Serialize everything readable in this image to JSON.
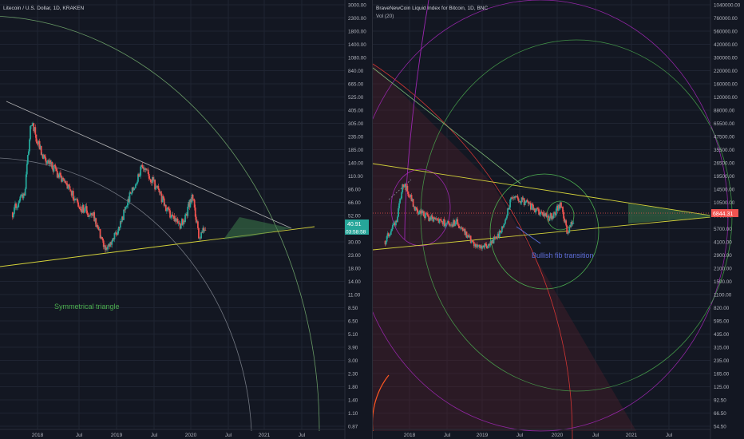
{
  "colors": {
    "bg": "#131722",
    "grid": "#1f2432",
    "axis_text": "#b2b5be",
    "candle_up": "#26a69a",
    "candle_down": "#ef5350",
    "trend_yellow": "#d4d23a",
    "trend_green": "#7dba76",
    "circle_green": "#4caf50",
    "circle_purple": "#9c27b0",
    "circle_red": "#e53935",
    "fill_green": "#3d7a4a",
    "fill_red": "#5a1f2a",
    "badge_green": "#26a69a",
    "badge_red": "#ef5350",
    "annotation_blue": "#5b6bd6"
  },
  "left_chart": {
    "title": "Litecoin / U.S. Dollar, 1D, KRAKEN",
    "price_badge": "40.91",
    "timer_badge": "03:58:58",
    "annotation": "Symmetrical triangle",
    "y_ticks": [
      "3000.00",
      "2300.00",
      "1800.00",
      "1400.00",
      "1080.00",
      "840.00",
      "665.00",
      "525.00",
      "405.00",
      "305.00",
      "235.00",
      "185.00",
      "140.00",
      "110.00",
      "86.00",
      "66.00",
      "52.00",
      "40.00",
      "30.00",
      "23.00",
      "18.00",
      "14.00",
      "11.00",
      "8.50",
      "6.50",
      "5.10",
      "3.90",
      "3.00",
      "2.30",
      "1.80",
      "1.40",
      "1.10",
      "0.87"
    ],
    "x_ticks": [
      "2018",
      "Jul",
      "2019",
      "Jul",
      "2020",
      "Jul",
      "2021",
      "Jul"
    ]
  },
  "right_chart": {
    "title": "BraveNewCoin Liquid Index for Bitcoin, 1D, BNC",
    "subtitle": "Vol (20)",
    "price_badge": "6844.31",
    "annotation": "Bullish fib transition",
    "y_ticks": [
      "1040000.00",
      "760000.00",
      "560000.00",
      "420000.00",
      "300000.00",
      "220000.00",
      "160000.00",
      "120000.00",
      "88000.00",
      "65500.00",
      "47500.00",
      "35500.00",
      "26500.00",
      "19500.00",
      "14500.00",
      "10500.00",
      "7700.00",
      "5700.00",
      "4100.00",
      "2900.00",
      "2100.00",
      "1500.00",
      "1100.00",
      "820.00",
      "595.00",
      "435.00",
      "315.00",
      "235.00",
      "165.00",
      "125.00",
      "92.50",
      "66.50",
      "54.50"
    ],
    "x_ticks": [
      "2018",
      "Jul",
      "2019",
      "Jul",
      "2020",
      "Jul",
      "2021",
      "Jul"
    ]
  },
  "chart_data": [
    {
      "type": "candlestick",
      "title": "Litecoin / U.S. Dollar, 1D, KRAKEN",
      "scale": "log",
      "ylim": [
        0.8,
        3300
      ],
      "x_ticks": [
        "2018",
        "Jul",
        "2019",
        "Jul",
        "2020",
        "Jul",
        "2021",
        "Jul"
      ],
      "approx_close_path": [
        {
          "x": "2017-09",
          "y": 55
        },
        {
          "x": "2017-11",
          "y": 85
        },
        {
          "x": "2017-12",
          "y": 330
        },
        {
          "x": "2018-01",
          "y": 210
        },
        {
          "x": "2018-02",
          "y": 160
        },
        {
          "x": "2018-04",
          "y": 120
        },
        {
          "x": "2018-06",
          "y": 85
        },
        {
          "x": "2018-08",
          "y": 60
        },
        {
          "x": "2018-10",
          "y": 52
        },
        {
          "x": "2018-12",
          "y": 25
        },
        {
          "x": "2019-02",
          "y": 40
        },
        {
          "x": "2019-04",
          "y": 80
        },
        {
          "x": "2019-06",
          "y": 135
        },
        {
          "x": "2019-08",
          "y": 90
        },
        {
          "x": "2019-10",
          "y": 55
        },
        {
          "x": "2019-12",
          "y": 42
        },
        {
          "x": "2020-02",
          "y": 75
        },
        {
          "x": "2020-03",
          "y": 33
        },
        {
          "x": "2020-04",
          "y": 41
        }
      ],
      "last_price": 40.91
    },
    {
      "type": "candlestick",
      "title": "BraveNewCoin Liquid Index for Bitcoin, 1D, BNC",
      "scale": "log",
      "ylim": [
        50,
        1100000
      ],
      "x_ticks": [
        "2018",
        "Jul",
        "2019",
        "Jul",
        "2020",
        "Jul",
        "2021",
        "Jul"
      ],
      "approx_close_path": [
        {
          "x": "2017-09",
          "y": 4200
        },
        {
          "x": "2017-11",
          "y": 7500
        },
        {
          "x": "2017-12",
          "y": 17000
        },
        {
          "x": "2018-02",
          "y": 9000
        },
        {
          "x": "2018-04",
          "y": 7500
        },
        {
          "x": "2018-06",
          "y": 6500
        },
        {
          "x": "2018-09",
          "y": 6500
        },
        {
          "x": "2018-12",
          "y": 3600
        },
        {
          "x": "2019-02",
          "y": 3800
        },
        {
          "x": "2019-04",
          "y": 5200
        },
        {
          "x": "2019-06",
          "y": 12500
        },
        {
          "x": "2019-08",
          "y": 10500
        },
        {
          "x": "2019-10",
          "y": 8500
        },
        {
          "x": "2019-12",
          "y": 7200
        },
        {
          "x": "2020-02",
          "y": 10000
        },
        {
          "x": "2020-03",
          "y": 5200
        },
        {
          "x": "2020-04",
          "y": 6844
        }
      ],
      "last_price": 6844.31
    }
  ]
}
